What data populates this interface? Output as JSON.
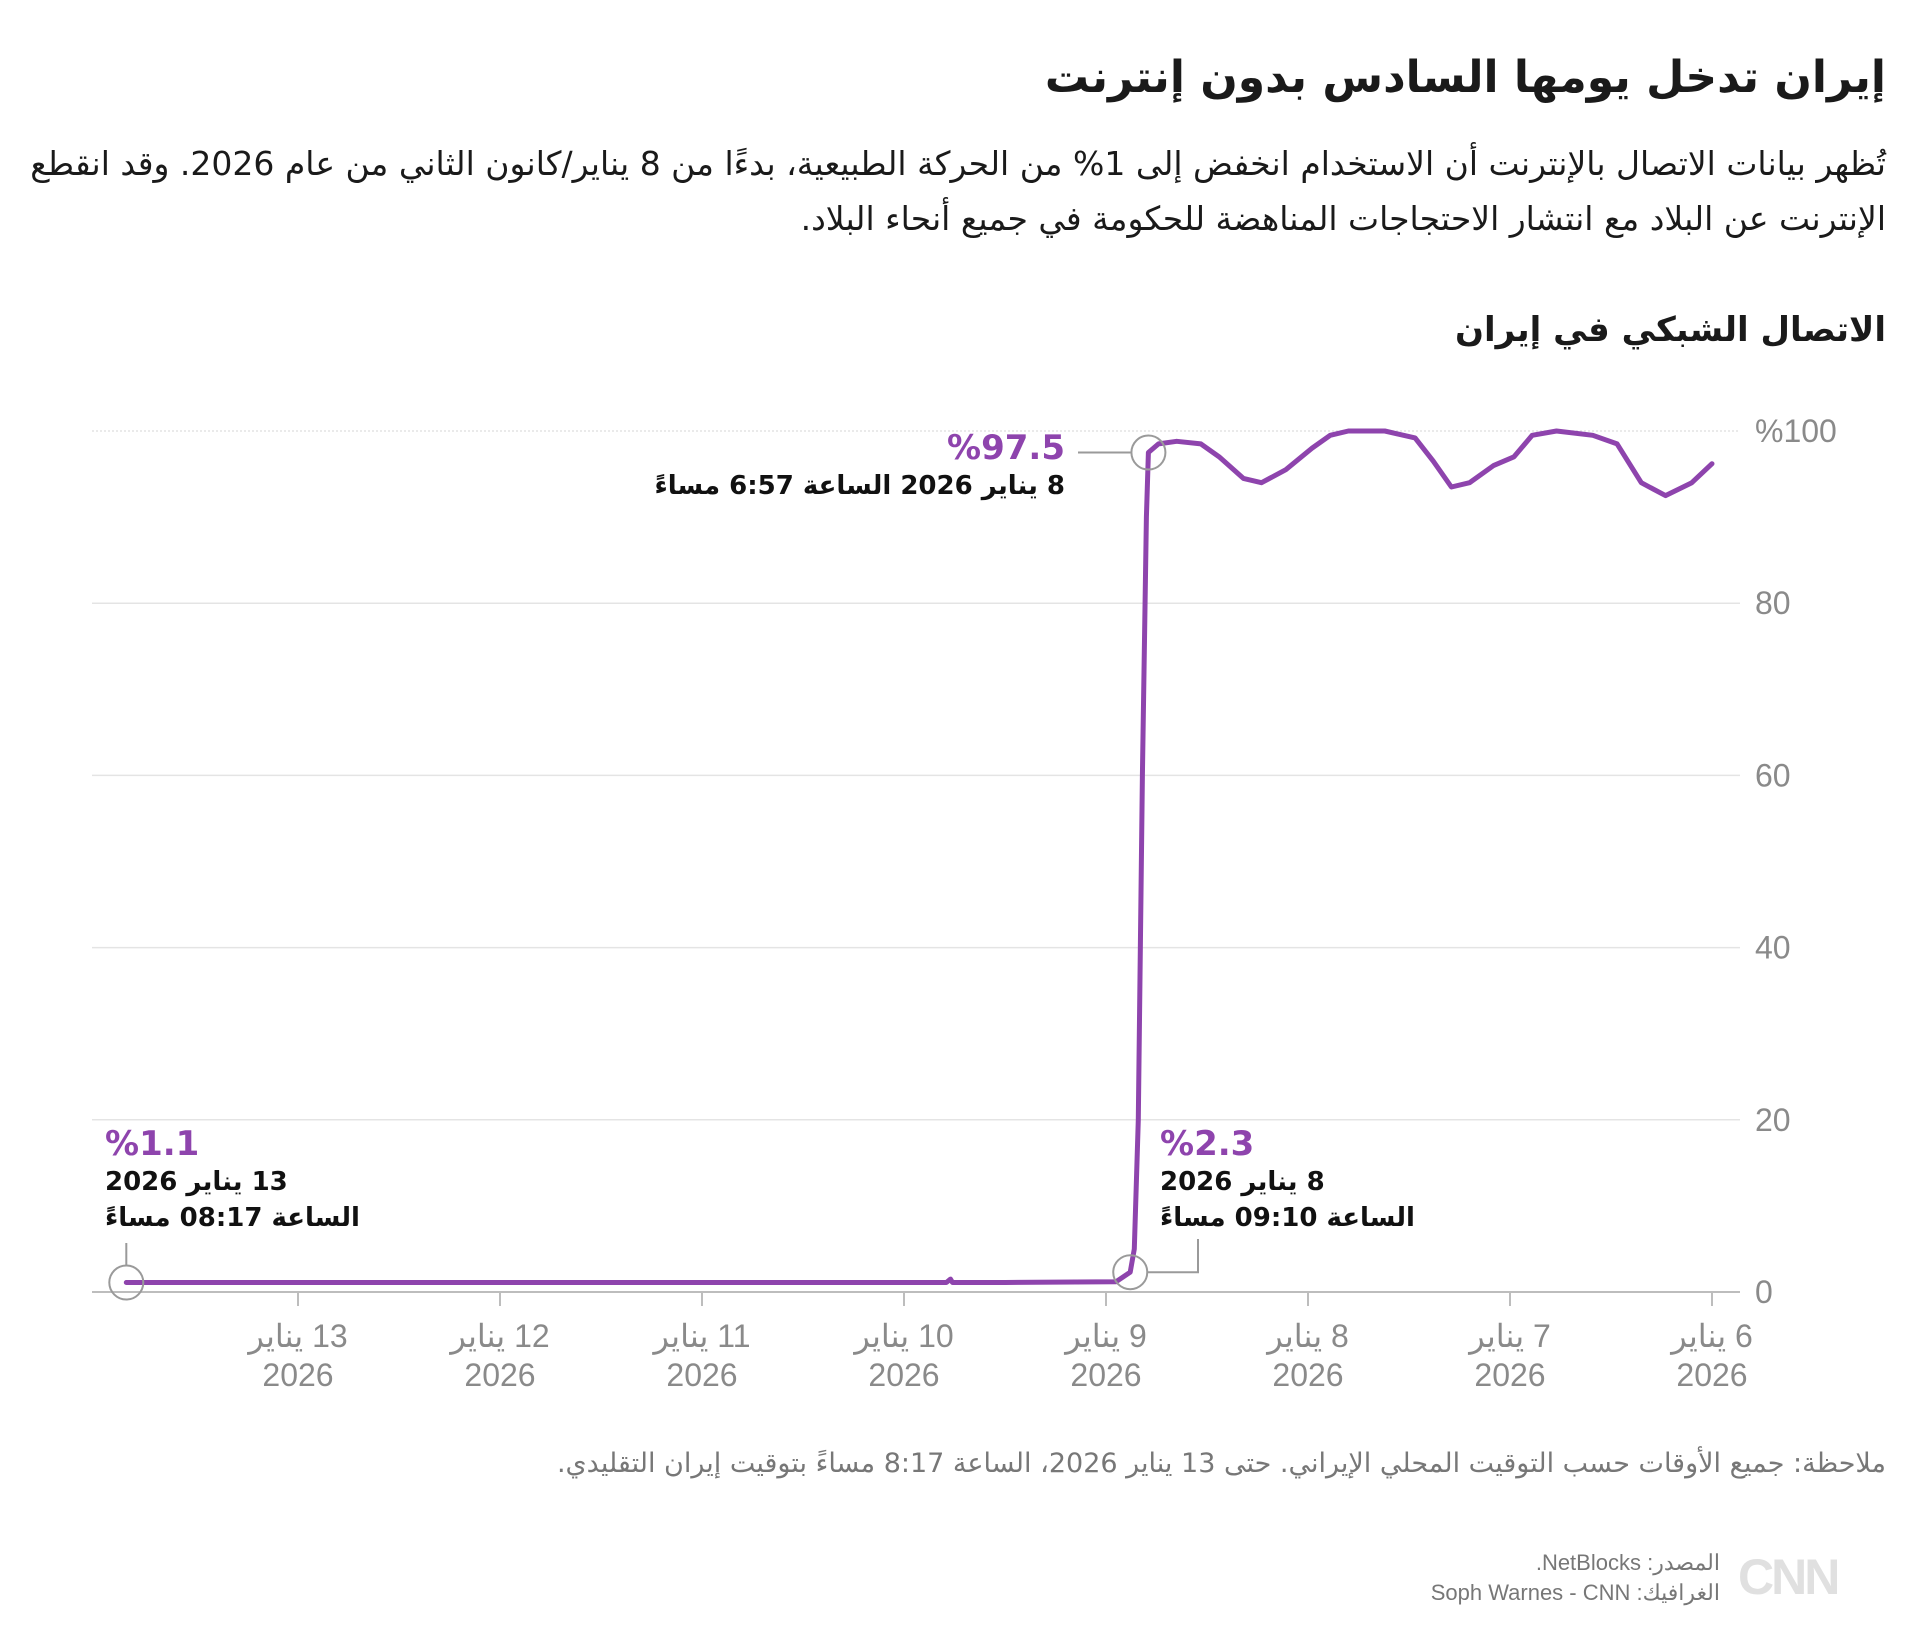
{
  "header": {
    "title": "إيران تدخل يومها السادس بدون إنترنت",
    "subtitle": "تُظهر بيانات الاتصال بالإنترنت أن الاستخدام انخفض إلى 1% من الحركة الطبيعية، بدءًا من 8 يناير/كانون الثاني من عام 2026. وقد انقطع الإنترنت عن البلاد مع انتشار الاحتجاجات المناهضة للحكومة في جميع أنحاء البلاد."
  },
  "chart_data": {
    "type": "line",
    "title": "الاتصال الشبكي في إيران",
    "xlabel": "",
    "ylabel": "",
    "x_unit": "days since 6 Jan 2026 00:00 (Iran time); axis runs right-to-left",
    "xlim": [
      0,
      7.95
    ],
    "ylim": [
      0,
      100
    ],
    "y_ticks": [
      0,
      20,
      40,
      60,
      80,
      100
    ],
    "y_tick_labels": [
      "0",
      "20",
      "40",
      "60",
      "80",
      "%100"
    ],
    "x_ticks": [
      {
        "value": 0,
        "line1": "6 يناير",
        "line2": "2026"
      },
      {
        "value": 1,
        "line1": "7 يناير",
        "line2": "2026"
      },
      {
        "value": 2,
        "line1": "8 يناير",
        "line2": "2026"
      },
      {
        "value": 3,
        "line1": "9 يناير",
        "line2": "2026"
      },
      {
        "value": 4,
        "line1": "10 يناير",
        "line2": "2026"
      },
      {
        "value": 5,
        "line1": "11 يناير",
        "line2": "2026"
      },
      {
        "value": 6,
        "line1": "12 يناير",
        "line2": "2026"
      },
      {
        "value": 7,
        "line1": "13 يناير",
        "line2": "2026"
      }
    ],
    "grid": true,
    "color": "#8e44ad",
    "series": [
      {
        "name": "الاتصال الشبكي",
        "points": [
          [
            0,
            96.2
          ],
          [
            0.1,
            94
          ],
          [
            0.23,
            92.5
          ],
          [
            0.35,
            94
          ],
          [
            0.47,
            98.5
          ],
          [
            0.59,
            99.5
          ],
          [
            0.77,
            100
          ],
          [
            0.89,
            99.5
          ],
          [
            0.98,
            97
          ],
          [
            1.08,
            96
          ],
          [
            1.2,
            94
          ],
          [
            1.29,
            93.5
          ],
          [
            1.38,
            96.5
          ],
          [
            1.47,
            99.2
          ],
          [
            1.62,
            100
          ],
          [
            1.8,
            100
          ],
          [
            1.89,
            99.5
          ],
          [
            1.98,
            98
          ],
          [
            2.11,
            95.5
          ],
          [
            2.23,
            94
          ],
          [
            2.32,
            94.5
          ],
          [
            2.44,
            97
          ],
          [
            2.53,
            98.5
          ],
          [
            2.65,
            98.8
          ],
          [
            2.74,
            98.5
          ],
          [
            2.79,
            97.5
          ],
          [
            2.8,
            90
          ],
          [
            2.82,
            60
          ],
          [
            2.84,
            20
          ],
          [
            2.86,
            5
          ],
          [
            2.88,
            2.3
          ],
          [
            2.95,
            1.2
          ],
          [
            3.5,
            1.1
          ],
          [
            3.76,
            1.1
          ],
          [
            3.77,
            1.5
          ],
          [
            3.79,
            1.1
          ],
          [
            5,
            1.1
          ],
          [
            6,
            1.1
          ],
          [
            7,
            1.1
          ],
          [
            7.85,
            1.1
          ]
        ]
      }
    ],
    "annotations": [
      {
        "value_label": "%97.5",
        "text1": "8 يناير 2026 الساعة 6:57 مساءً",
        "text2": "",
        "x": 2.79,
        "y": 97.5
      },
      {
        "value_label": "%2.3",
        "text1": "8 يناير 2026",
        "text2": "الساعة 09:10 مساءً",
        "x": 2.88,
        "y": 2.3
      },
      {
        "value_label": "%1.1",
        "text1": "13 يناير 2026",
        "text2": "الساعة 08:17 مساءً",
        "x": 7.85,
        "y": 1.1
      }
    ]
  },
  "footer": {
    "note": "ملاحظة: جميع الأوقات حسب التوقيت المحلي الإيراني. حتى 13 يناير 2026، الساعة 8:17 مساءً بتوقيت إيران التقليدي.",
    "source": "المصدر: NetBlocks.",
    "graphics": "الغرافيك: Soph Warnes - CNN",
    "logo_text": "CNN بالعربية"
  }
}
